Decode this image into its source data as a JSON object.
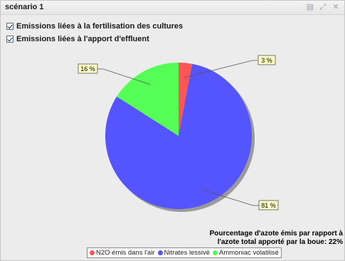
{
  "window": {
    "title": "scénario 1",
    "icons": [
      "export-icon",
      "restore-icon",
      "close-icon"
    ]
  },
  "options": {
    "fertilisation_label": "Emissions liées à la fertilisation des cultures",
    "fertilisation_checked": true,
    "effluent_label": "Emissions liées à l'apport d'effluent",
    "effluent_checked": true
  },
  "chart_data": {
    "type": "pie",
    "slices": [
      {
        "name": "N2O émis dans l'air",
        "value": 3,
        "label": "3 %",
        "color": "#ff5555"
      },
      {
        "name": "Nitrates lessivé",
        "value": 81,
        "label": "81 %",
        "color": "#5555ff"
      },
      {
        "name": "Ammoniac volatilisé",
        "value": 16,
        "label": "16 %",
        "color": "#55ff55"
      }
    ],
    "legend_position": "bottom"
  },
  "footnote": {
    "line1": "Pourcentage d'azote émis par rapport à",
    "line2": "l'azote total apporté par la boue: 22%"
  }
}
